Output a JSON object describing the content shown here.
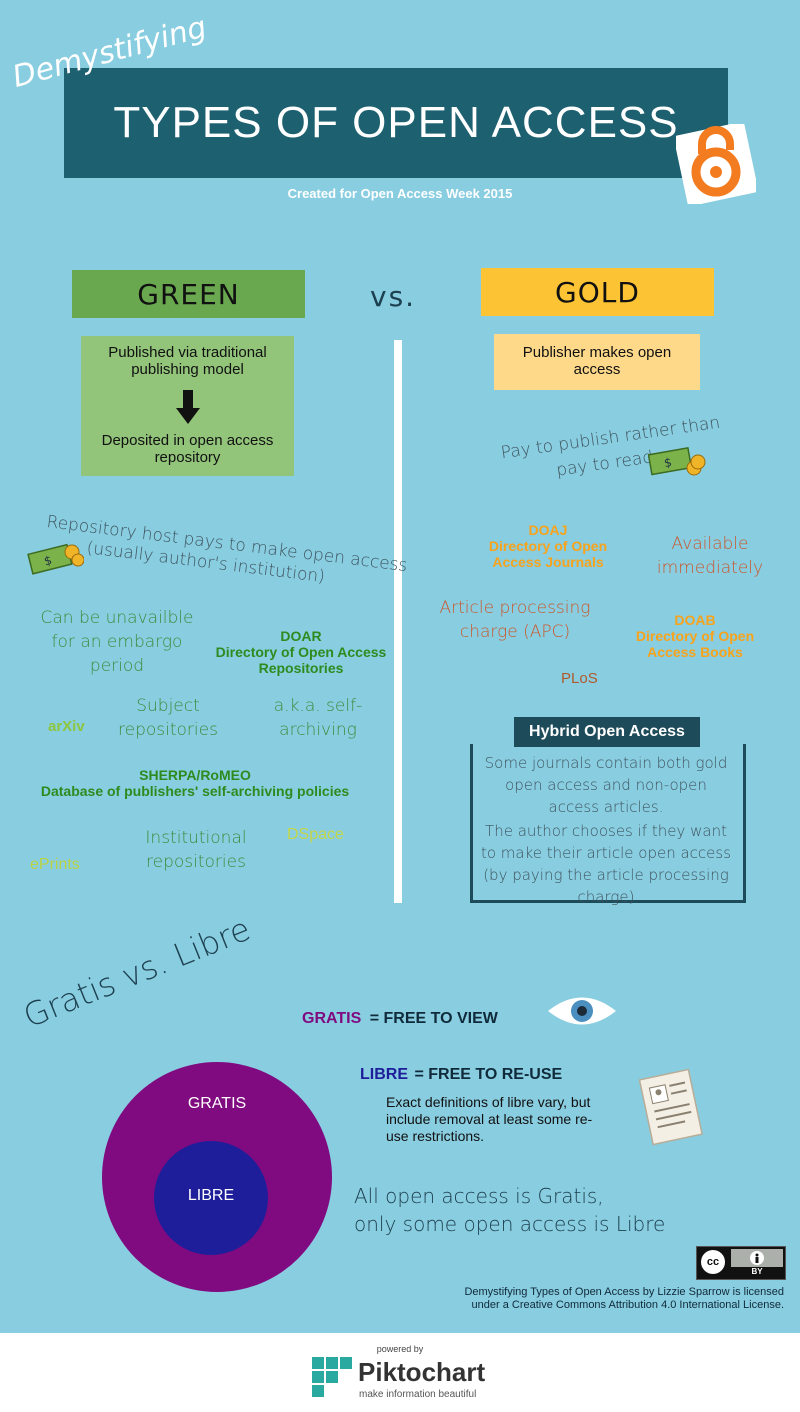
{
  "header": {
    "kicker": "Demystifying",
    "title": "TYPES OF OPEN ACCESS",
    "subtitle": "Created for Open Access Week 2015"
  },
  "compare": {
    "green_label": "GREEN",
    "vs_label": "vs.",
    "gold_label": "GOLD"
  },
  "green": {
    "box_top": "Published via traditional publishing model",
    "box_bottom": "Deposited in open access repository",
    "host_line1": "Repository host pays to make open access",
    "host_line2": "(usually author's institution)",
    "embargo": "Can be unavailble for an embargo period",
    "doar_title": "DOAR",
    "doar_full": "Directory of Open Access Repositories",
    "arxiv": "arXiv",
    "subject": "Subject repositories",
    "aka": "a.k.a. self-archiving",
    "sherpa_title": "SHERPA/RoMEO",
    "sherpa_full": "Database of publishers' self-archiving policies",
    "institutional": "Institutional repositories",
    "dspace": "DSpace",
    "eprints": "ePrints"
  },
  "gold": {
    "box": "Publisher makes open access",
    "pay_line1": "Pay to publish rather than",
    "pay_line2": "pay to read",
    "doaj_title": "DOAJ",
    "doaj_full": "Directory of Open Access Journals",
    "available": "Available immediately",
    "apc": "Article processing charge (APC)",
    "doab_title": "DOAB",
    "doab_full": "Directory of Open Access Books",
    "plos": "PLoS",
    "hybrid_title": "Hybrid Open Access",
    "hybrid_p1": "Some journals contain both gold open access and non-open access articles.",
    "hybrid_p2": "The author chooses if they want to make their article open access (by paying the article processing charge)"
  },
  "gratis_libre": {
    "heading": "Gratis vs. Libre",
    "gratis_word": "GRATIS",
    "gratis_def": "= FREE TO VIEW",
    "libre_word": "LIBRE",
    "libre_def": "= FREE TO RE-USE",
    "libre_note": "Exact definitions of libre vary, but include removal at least some re-use restrictions.",
    "circle_gratis": "GRATIS",
    "circle_libre": "LIBRE",
    "summary_line1": "All open access is Gratis,",
    "summary_line2": "only some open access is Libre"
  },
  "license": {
    "badge_cc": "cc",
    "badge_by": "BY",
    "line1": "Demystifying Types of Open Access by Lizzie Sparrow is licensed",
    "line2": "under a Creative Commons Attribution 4.0 International License."
  },
  "footer": {
    "powered": "powered by",
    "brand": "Piktochart",
    "tagline": "make information beautiful"
  },
  "colors": {
    "background": "#89cde0",
    "banner": "#1d6070",
    "green": "#6aa84f",
    "gold": "#fcc434",
    "gratis": "#800a80",
    "libre": "#1e1e9a",
    "oa_logo": "#f47c20"
  }
}
